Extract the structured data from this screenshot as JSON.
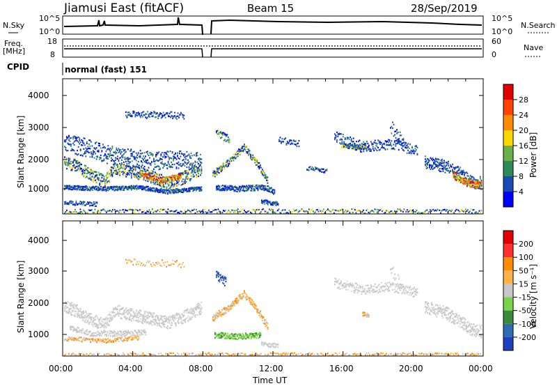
{
  "header": {
    "radar": "Jiamusi East (fitACF)",
    "beam": "Beam 15",
    "date": "28/Sep/2019"
  },
  "noise_panel": {
    "left_label": "N.Sky",
    "right_label": "N.Search",
    "ticks_left": [
      "10^5",
      "10^0"
    ],
    "ticks_right": [
      "10^5",
      "10^0"
    ]
  },
  "freq_panel": {
    "left_label_1": "Freq.",
    "left_label_2": "[MHz]",
    "left_ticks": [
      "18",
      "8"
    ],
    "right_label": "Nave",
    "right_ticks": [
      "60",
      "0"
    ]
  },
  "cpid_panel": {
    "label": "CPID",
    "mode": "normal (fast) 151"
  },
  "power_panel": {
    "ylabel": "Slant Range [km]",
    "yticks": [
      "4000",
      "3000",
      "2000",
      "1000"
    ],
    "colorbar_label": "Power [dB]",
    "colorbar_ticks": [
      "28",
      "24",
      "20",
      "16",
      "12",
      "8",
      "4"
    ],
    "colors": [
      "#0000ff",
      "#1a4bb4",
      "#2e8b57",
      "#6ab04c",
      "#ffd700",
      "#ff8c00",
      "#ff4500",
      "#e00000"
    ]
  },
  "velocity_panel": {
    "ylabel": "Slant Range [km]",
    "yticks": [
      "4000",
      "3000",
      "2000",
      "1000"
    ],
    "colorbar_label": "Velocity [m s⁻¹]",
    "colorbar_ticks": [
      "200",
      "100",
      "50",
      "15",
      "-15",
      "-50",
      "-100",
      "-200"
    ],
    "colors": [
      "#1f3fbf",
      "#2e6db0",
      "#3a8c3a",
      "#7cd24a",
      "#c8c8c8",
      "#ffb347",
      "#ff8c00",
      "#ff3030",
      "#e00000"
    ]
  },
  "xaxis": {
    "ticks": [
      "00:00",
      "04:00",
      "08:00",
      "12:00",
      "16:00",
      "20:00",
      "00:00"
    ],
    "label": "Time UT"
  }
}
